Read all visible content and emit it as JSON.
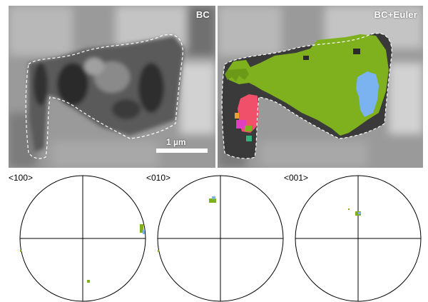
{
  "panels": {
    "left_label": "BC",
    "right_label": "BC+Euler",
    "scale_bar_label": "1 µm"
  },
  "colors": {
    "grain_green": "#7fb01e",
    "grain_blue": "#7ab3f0",
    "grain_red": "#f0506a",
    "grain_magenta": "#e040c0",
    "outline": "#ffffff"
  },
  "pole_figures": [
    {
      "label": "<100>"
    },
    {
      "label": "<010>"
    },
    {
      "label": "<001>"
    }
  ]
}
